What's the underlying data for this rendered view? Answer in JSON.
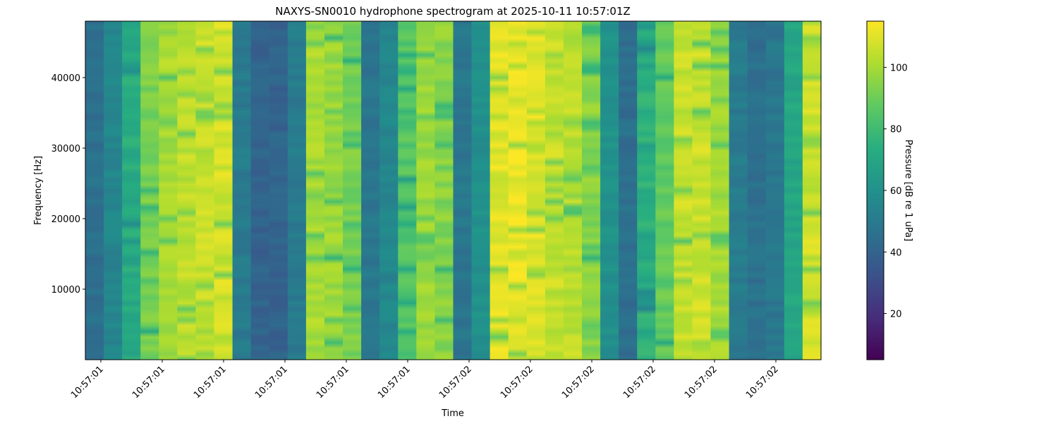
{
  "chart_data": {
    "type": "heatmap",
    "title": "NAXYS-SN0010 hydrophone spectrogram at 2025-10-11 10:57:01Z",
    "xlabel": "Time",
    "ylabel": "Frequency [Hz]",
    "colorbar_label": "Pressure [dB re 1 uPa]",
    "colormap": "viridis",
    "ylim": [
      0,
      48000
    ],
    "clim": [
      5,
      115
    ],
    "yticks": [
      10000,
      20000,
      30000,
      40000
    ],
    "xtick_labels": [
      "10:57:01",
      "10:57:01",
      "10:57:01",
      "10:57:01",
      "10:57:01",
      "10:57:01",
      "10:57:02",
      "10:57:02",
      "10:57:02",
      "10:57:02",
      "10:57:02",
      "10:57:02"
    ],
    "colorbar_ticks": [
      20,
      40,
      60,
      80,
      100
    ],
    "column_mean_levels_db": [
      45,
      55,
      72,
      92,
      100,
      104,
      106,
      108,
      50,
      40,
      40,
      50,
      100,
      98,
      92,
      48,
      55,
      85,
      98,
      95,
      48,
      60,
      110,
      112,
      110,
      105,
      104,
      95,
      60,
      45,
      75,
      88,
      105,
      106,
      100,
      50,
      46,
      48,
      70,
      108
    ]
  }
}
